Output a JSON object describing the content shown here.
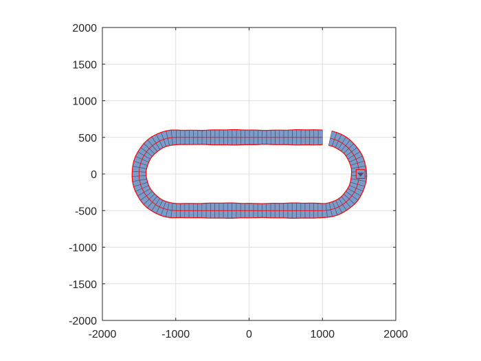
{
  "chart_data": {
    "type": "line",
    "title": "",
    "xlabel": "",
    "ylabel": "",
    "xlim": [
      -2000,
      2000
    ],
    "ylim": [
      -2000,
      2000
    ],
    "aspect": "equal",
    "grid": true,
    "box": true,
    "x_ticks": [
      -2000,
      -1000,
      0,
      1000,
      2000
    ],
    "y_ticks": [
      -2000,
      -1500,
      -1000,
      -500,
      0,
      500,
      1000,
      1500,
      2000
    ],
    "x_tick_labels": [
      "-2000",
      "-1000",
      "0",
      "1000",
      "2000"
    ],
    "y_tick_labels": [
      "-2000",
      "-1500",
      "-1000",
      "-500",
      "0",
      "500",
      "1000",
      "1500",
      "2000"
    ],
    "track": {
      "shape": "stadium loop made of many small quadrilateral segments",
      "centerline_straight_x": [
        -1000,
        1000
      ],
      "centerline_y": [
        -500,
        500
      ],
      "turn_radius": 500,
      "turn_centers": [
        [
          -1000,
          0
        ],
        [
          1000,
          0
        ]
      ],
      "half_width": 100,
      "segment_count": 120,
      "end_marker": {
        "x": 1520,
        "y": 0,
        "size": 120
      },
      "fill_color": "#7b9bc8",
      "edge_color": "#ff0000",
      "segment_line_color": "#4a4a6a"
    }
  }
}
